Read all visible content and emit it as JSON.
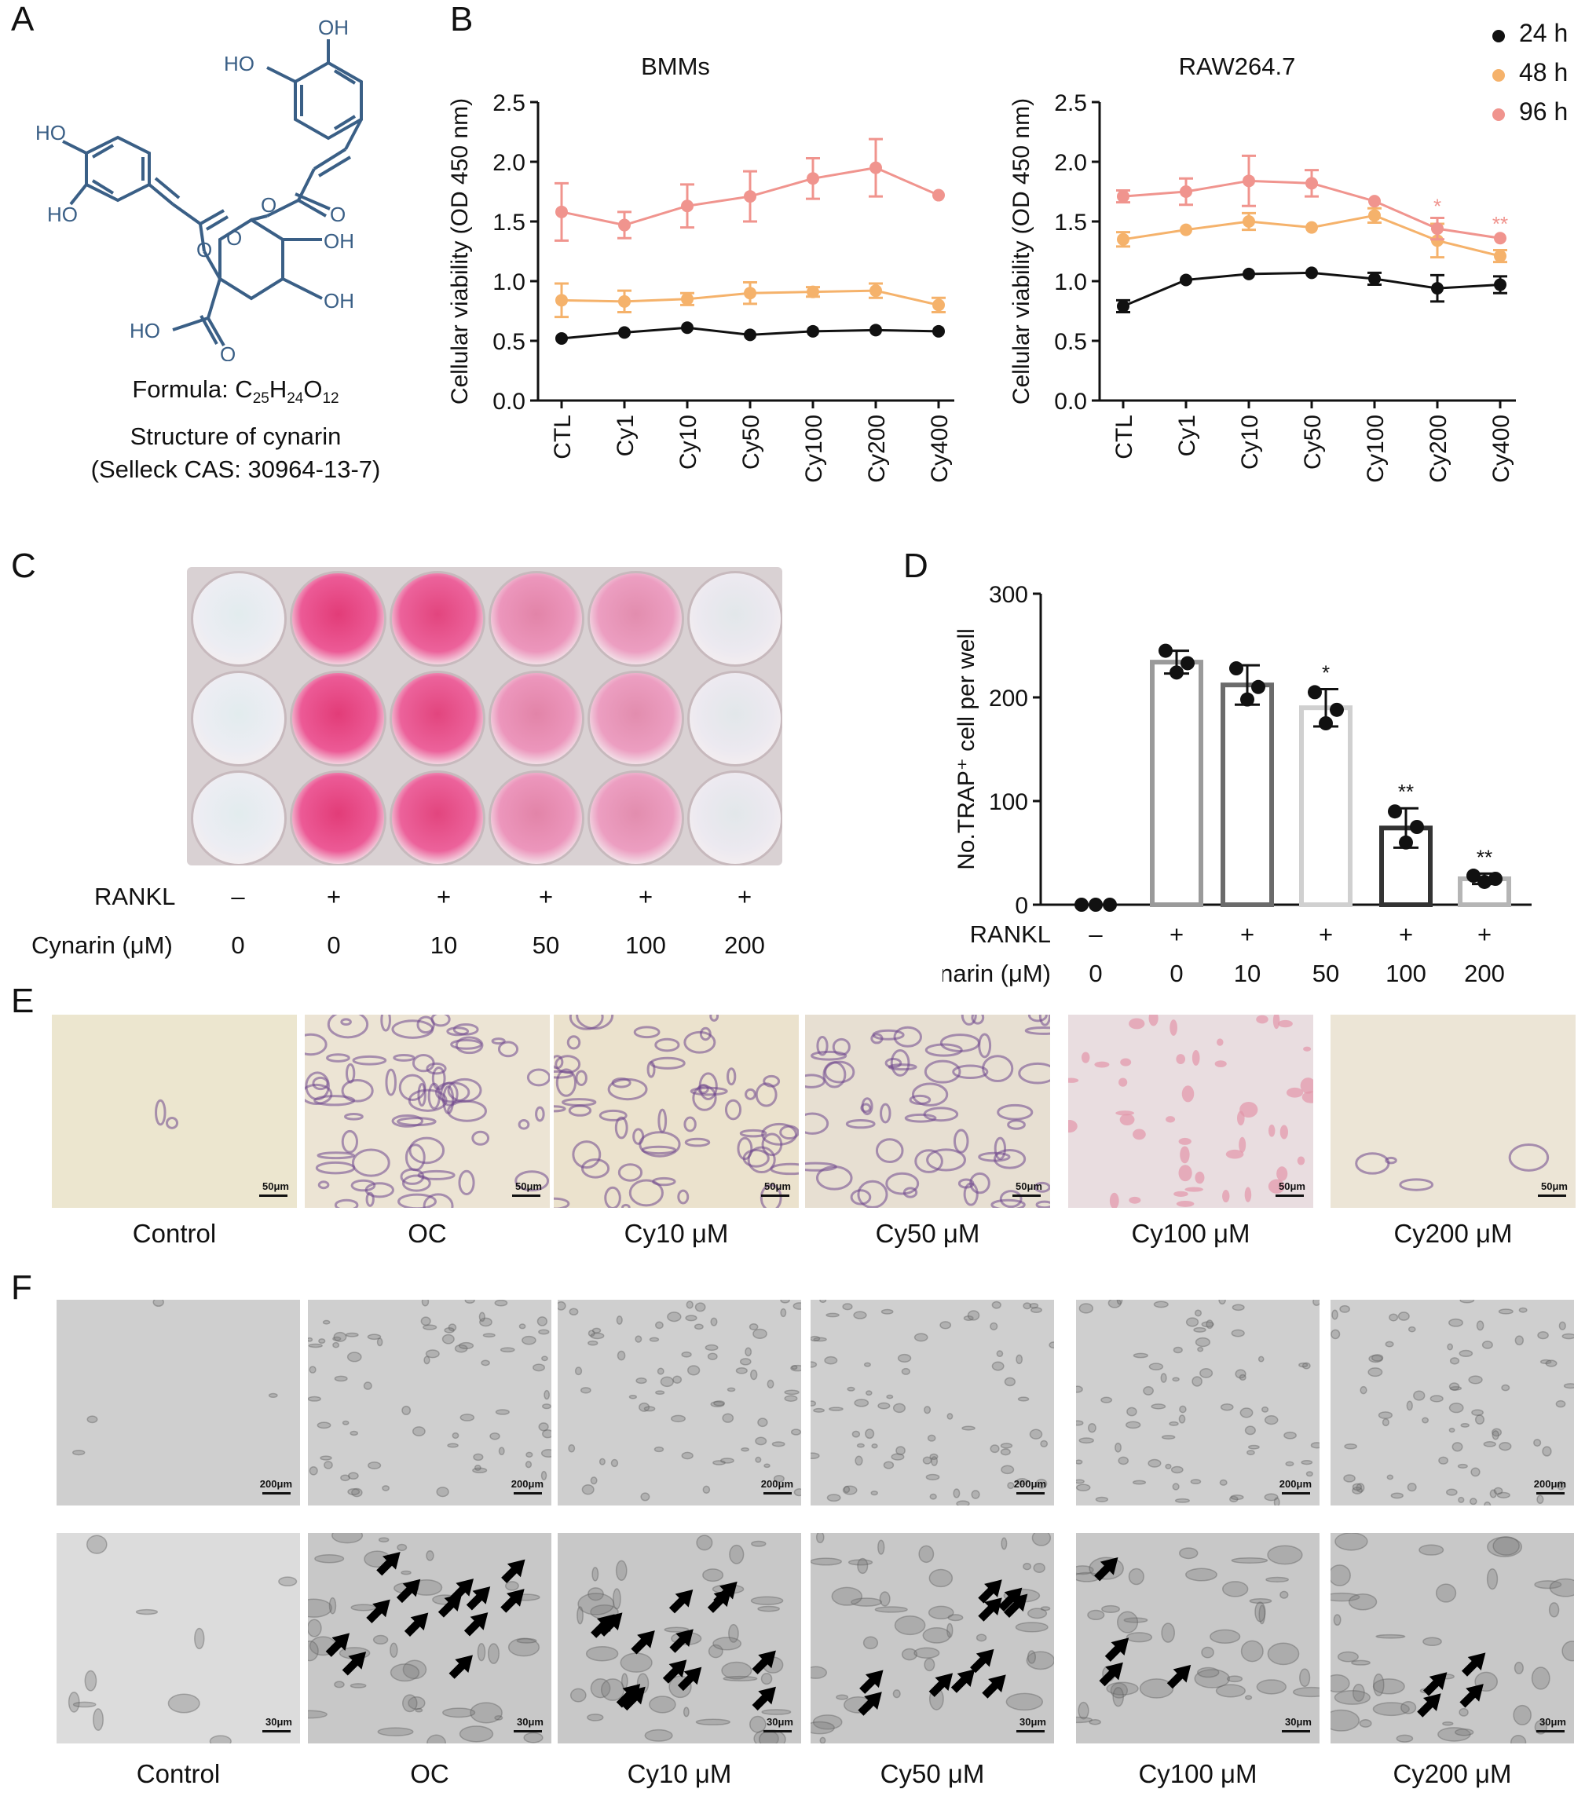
{
  "panels": {
    "A": "A",
    "B": "B",
    "C": "C",
    "D": "D",
    "E": "E",
    "F": "F"
  },
  "panel_a": {
    "formula_prefix": "Formula: C",
    "formula_c": "25",
    "formula_h": "H",
    "formula_hn": "24",
    "formula_o": "O",
    "formula_on": "12",
    "line2": "Structure of cynarin",
    "line3": "(Selleck CAS: 30964-13-7)",
    "labels": [
      "OH",
      "HO",
      "HO",
      "HO",
      "O",
      "O",
      "OH",
      "O",
      "O",
      "HO",
      "O",
      "OH"
    ]
  },
  "chart_data": [
    {
      "type": "line",
      "title": "BMMs",
      "ylabel": "Cellular viability (OD 450 nm)",
      "ylim": [
        0,
        2.5
      ],
      "yticks": [
        "0.0",
        "0.5",
        "1.0",
        "1.5",
        "2.0",
        "2.5"
      ],
      "categories": [
        "CTL",
        "Cy1",
        "Cy10",
        "Cy50",
        "Cy100",
        "Cy200",
        "Cy400"
      ],
      "series": [
        {
          "name": "24 h",
          "color": "#111111",
          "values": [
            0.52,
            0.57,
            0.61,
            0.55,
            0.58,
            0.59,
            0.58
          ],
          "err": [
            0.02,
            0.02,
            0.02,
            0.02,
            0.02,
            0.02,
            0.02
          ]
        },
        {
          "name": "48 h",
          "color": "#f5b26b",
          "values": [
            0.84,
            0.83,
            0.85,
            0.9,
            0.91,
            0.92,
            0.8
          ],
          "err": [
            0.14,
            0.09,
            0.05,
            0.09,
            0.04,
            0.06,
            0.06
          ]
        },
        {
          "name": "96 h",
          "color": "#f0948e",
          "values": [
            1.58,
            1.47,
            1.63,
            1.71,
            1.86,
            1.95,
            1.72
          ],
          "err": [
            0.24,
            0.11,
            0.18,
            0.21,
            0.17,
            0.24,
            0.02
          ]
        }
      ]
    },
    {
      "type": "line",
      "title": "RAW264.7",
      "ylabel": "Cellular viability (OD 450 nm)",
      "ylim": [
        0,
        2.5
      ],
      "yticks": [
        "0.0",
        "0.5",
        "1.0",
        "1.5",
        "2.0",
        "2.5"
      ],
      "categories": [
        "CTL",
        "Cy1",
        "Cy10",
        "Cy50",
        "Cy100",
        "Cy200",
        "Cy400"
      ],
      "series": [
        {
          "name": "24 h",
          "color": "#111111",
          "values": [
            0.79,
            1.01,
            1.06,
            1.07,
            1.02,
            0.94,
            0.97
          ],
          "err": [
            0.05,
            0.02,
            0.02,
            0.02,
            0.05,
            0.11,
            0.07
          ]
        },
        {
          "name": "48 h",
          "color": "#f5b26b",
          "values": [
            1.35,
            1.43,
            1.5,
            1.45,
            1.55,
            1.34,
            1.21
          ],
          "err": [
            0.06,
            0.03,
            0.07,
            0.03,
            0.06,
            0.14,
            0.05
          ]
        },
        {
          "name": "96 h",
          "color": "#f0948e",
          "values": [
            1.71,
            1.75,
            1.84,
            1.82,
            1.67,
            1.44,
            1.36
          ],
          "err": [
            0.05,
            0.11,
            0.21,
            0.11,
            0.02,
            0.09,
            0.02
          ]
        }
      ],
      "annotations": [
        {
          "category": "Cy200",
          "text": "*"
        },
        {
          "category": "Cy400",
          "text": "**"
        }
      ]
    },
    {
      "type": "bar",
      "ylabel": "No.TRAP⁺ cell per well",
      "ylim": [
        0,
        300
      ],
      "yticks": [
        "0",
        "100",
        "200",
        "300"
      ],
      "rankl": [
        "–",
        "+",
        "+",
        "+",
        "+",
        "+"
      ],
      "cynarin": [
        "0",
        "0",
        "10",
        "50",
        "100",
        "200"
      ],
      "values": [
        0,
        234,
        212,
        190,
        74,
        25
      ],
      "err": [
        0,
        11,
        19,
        18,
        19,
        5
      ],
      "points": [
        [
          0,
          0,
          0
        ],
        [
          245,
          233,
          224
        ],
        [
          228,
          210,
          198
        ],
        [
          205,
          188,
          175
        ],
        [
          90,
          75,
          60
        ],
        [
          28,
          25,
          22
        ]
      ],
      "bar_colors": [
        "#222222",
        "#9a9a9a",
        "#6b6b6b",
        "#d0d0d0",
        "#333333",
        "#b5b5b5"
      ],
      "annotations": [
        "",
        "",
        "",
        "*",
        "**",
        "**"
      ]
    }
  ],
  "legend": {
    "items": [
      {
        "label": "24 h",
        "color": "#111111"
      },
      {
        "label": "48 h",
        "color": "#f5b26b"
      },
      {
        "label": "96 h",
        "color": "#f0948e"
      }
    ]
  },
  "panel_c": {
    "rankl_label": "RANKL",
    "cynarin_label": "Cynarin (μM)",
    "rankl": [
      "–",
      "+",
      "+",
      "+",
      "+",
      "+"
    ],
    "cynarin": [
      "0",
      "0",
      "10",
      "50",
      "100",
      "200"
    ],
    "well_stain": [
      0.02,
      1.0,
      0.95,
      0.6,
      0.55,
      0.05
    ]
  },
  "panel_d_labels": {
    "rankl_label": "RANKL",
    "cynarin_label": "Cynarin (μM)"
  },
  "panel_e": {
    "captions": [
      "Control",
      "OC",
      "Cy10 μM",
      "Cy50 μM",
      "Cy100 μM",
      "Cy200 μM"
    ],
    "scale": "50μm"
  },
  "panel_f": {
    "captions": [
      "Control",
      "OC",
      "Cy10 μM",
      "Cy50 μM",
      "Cy100 μM",
      "Cy200 μM"
    ],
    "scale_top": "200μm",
    "scale_bottom": "30μm",
    "arrows": [
      0,
      13,
      13,
      10,
      4,
      4
    ]
  }
}
